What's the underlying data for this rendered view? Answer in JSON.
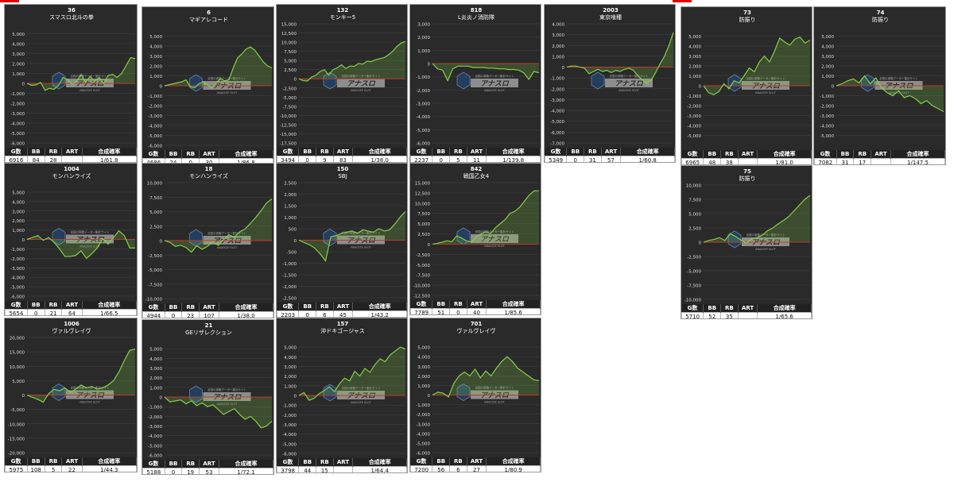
{
  "colors": {
    "panel_bg": "#2a2a2a",
    "line": "#86cf48",
    "fill": "#86cf48",
    "zero_line": "#c0392b",
    "grid": "#444444",
    "text": "#ffffff",
    "logo": "#ffffff"
  },
  "logo": {
    "name": "アナスロ",
    "sub": "ANALYZE SLOT",
    "tagline": "全国の実戦データー集計サイト"
  },
  "headers": [
    "G数",
    "BB",
    "RB",
    "ART",
    "合成確率"
  ],
  "chart_data": [
    {
      "type": "area",
      "number": "36",
      "name": "スマスロ北斗の拳",
      "ylim": [
        -6000,
        6000
      ],
      "yticks": [
        -6000,
        -5000,
        -4000,
        -3000,
        -2000,
        -1000,
        0,
        1000,
        2000,
        3000,
        4000,
        5000
      ],
      "values": [
        0,
        -200,
        -150,
        100,
        -700,
        -500,
        -600,
        -200,
        600,
        400,
        -100,
        200,
        900,
        100,
        700,
        200,
        600,
        0,
        800,
        900,
        600,
        1000,
        1800,
        2600,
        2500
      ],
      "stats": [
        "6916",
        "84",
        "28",
        "",
        "1/61.8"
      ]
    },
    {
      "type": "area",
      "number": "6",
      "name": "マギアレコード",
      "ylim": [
        -6000,
        6000
      ],
      "yticks": [
        -6000,
        -5000,
        -4000,
        -3000,
        -2000,
        -1000,
        0,
        1000,
        2000,
        3000,
        4000,
        5000
      ],
      "values": [
        0,
        100,
        200,
        300,
        400,
        600,
        -100,
        -200,
        200,
        400,
        100,
        -200,
        300,
        700,
        500,
        600,
        1800,
        2800,
        3200,
        3700,
        3900,
        3600,
        3000,
        2400,
        2000,
        1800
      ],
      "stats": [
        "4686",
        "24",
        "0",
        "30",
        "1/86.8"
      ]
    },
    {
      "type": "area",
      "number": "132",
      "name": "モンキー5",
      "ylim": [
        -17500,
        15000
      ],
      "yticks": [
        -17500,
        -15000,
        -12500,
        -10000,
        -7500,
        -5000,
        -2500,
        0,
        2500,
        5000,
        7500,
        10000,
        12500,
        15000
      ],
      "values": [
        0,
        -500,
        -600,
        500,
        1000,
        2000,
        2500,
        1000,
        2500,
        3000,
        3800,
        2800,
        3500,
        3400,
        4200,
        4000,
        4800,
        4700,
        5200,
        5500,
        5800,
        6500,
        7500,
        8800,
        9800,
        10200
      ],
      "stats": [
        "3494",
        "0",
        "9",
        "83",
        "1/38.0"
      ]
    },
    {
      "type": "area",
      "number": "818",
      "name": "L炎炎ノ消防隊",
      "ylim": [
        -6000,
        3000
      ],
      "yticks": [
        -6000,
        -5000,
        -4000,
        -3000,
        -2000,
        -1000,
        0,
        1000,
        2000,
        3000
      ],
      "values": [
        0,
        -400,
        -500,
        -1300,
        -400,
        -200,
        -200,
        -200,
        -300,
        -300,
        -300,
        -350,
        -350,
        -400,
        -400,
        -450,
        -450,
        -500,
        -700,
        -1200,
        -600,
        -700
      ],
      "stats": [
        "2237",
        "0",
        "5",
        "11",
        "1/139.8"
      ]
    },
    {
      "type": "area",
      "number": "2003",
      "name": "東京喰種",
      "ylim": [
        -7000,
        4000
      ],
      "yticks": [
        -7000,
        -6000,
        -5000,
        -4000,
        -3000,
        -2000,
        -1000,
        0,
        1000,
        2000,
        3000,
        4000
      ],
      "values": [
        0,
        100,
        100,
        0,
        -100,
        -600,
        -400,
        -200,
        -400,
        -300,
        -500,
        -300,
        -400,
        -200,
        -100,
        -300,
        -800,
        -1200,
        -1500,
        -1200,
        -500,
        300,
        1000,
        2000,
        3200
      ],
      "stats": [
        "5349",
        "0",
        "31",
        "57",
        "1/60.8"
      ]
    },
    {
      "type": "area",
      "number": "73",
      "name": "防振り",
      "ylim": [
        -6000,
        6000
      ],
      "yticks": [
        -5000,
        -4000,
        -3000,
        -2000,
        -1000,
        0,
        1000,
        2000,
        3000,
        4000,
        5000
      ],
      "values": [
        0,
        -700,
        -900,
        -600,
        200,
        -300,
        500,
        300,
        1000,
        1800,
        1400,
        2400,
        3000,
        2400,
        3500,
        4800,
        4400,
        4100,
        4700,
        4900,
        4300,
        4600
      ],
      "stats": [
        "6965",
        "48",
        "38",
        "",
        "1/81.0"
      ]
    },
    {
      "type": "area",
      "number": "74",
      "name": "防振り",
      "ylim": [
        -6000,
        6000
      ],
      "yticks": [
        -5000,
        -4000,
        -3000,
        -2000,
        -1000,
        0,
        1000,
        2000,
        3000,
        4000,
        5000
      ],
      "values": [
        0,
        200,
        500,
        700,
        300,
        1000,
        200,
        800,
        -200,
        -700,
        -1000,
        -500,
        -1200,
        -1000,
        -1300,
        -1800,
        -1500,
        -2000,
        -2300,
        -2600
      ],
      "stats": [
        "7082",
        "31",
        "17",
        "",
        "1/147.5"
      ]
    },
    {
      "type": "area",
      "number": "1004",
      "name": "モンハンライズ",
      "ylim": [
        -6000,
        6000
      ],
      "yticks": [
        -6000,
        -5000,
        -4000,
        -3000,
        -2000,
        -1000,
        0,
        1000,
        2000,
        3000,
        4000,
        5000
      ],
      "values": [
        0,
        200,
        400,
        -100,
        200,
        -300,
        -1000,
        -1800,
        -1800,
        -1700,
        -1200,
        -2000,
        -1500,
        -900,
        100,
        -500,
        200,
        900,
        400,
        -900,
        -900
      ],
      "stats": [
        "5654",
        "0",
        "21",
        "64",
        "1/66.5"
      ]
    },
    {
      "type": "area",
      "number": "18",
      "name": "モンハンライズ",
      "ylim": [
        -10000,
        10000
      ],
      "yticks": [
        -10000,
        -7500,
        -5000,
        -2500,
        0,
        2500,
        5000,
        7500,
        10000
      ],
      "values": [
        0,
        -300,
        -1000,
        -800,
        -1200,
        -2000,
        -900,
        -1500,
        -1000,
        -200,
        -800,
        200,
        1000,
        600,
        1500,
        2000,
        3000,
        4000,
        5200,
        6500,
        7200
      ],
      "stats": [
        "4944",
        "0",
        "23",
        "107",
        "1/38.0"
      ]
    },
    {
      "type": "area",
      "number": "150",
      "name": "SBJ",
      "ylim": [
        -2500,
        2500
      ],
      "yticks": [
        -2500,
        -2000,
        -1500,
        -1000,
        -500,
        0,
        500,
        1000,
        1500,
        2000,
        2500
      ],
      "values": [
        0,
        -100,
        -200,
        -350,
        -600,
        -900,
        150,
        200,
        300,
        350,
        400,
        300,
        450,
        400,
        350,
        500,
        400,
        450,
        700,
        1000,
        1250
      ],
      "stats": [
        "2203",
        "0",
        "6",
        "45",
        "1/43.2"
      ]
    },
    {
      "type": "area",
      "number": "842",
      "name": "戦国乙女4",
      "ylim": [
        -12500,
        15000
      ],
      "yticks": [
        -12500,
        -10000,
        -7500,
        -5000,
        -2500,
        0,
        2500,
        5000,
        7500,
        10000,
        12500,
        15000
      ],
      "values": [
        0,
        200,
        500,
        800,
        600,
        2000,
        1500,
        800,
        500,
        1800,
        2500,
        3000,
        2600,
        4000,
        5000,
        6000,
        7500,
        8000,
        9000,
        10500,
        12000,
        13000,
        13000
      ],
      "stats": [
        "7789",
        "51",
        "0",
        "40",
        "1/85.6"
      ]
    },
    {
      "type": "area",
      "number": "75",
      "name": "防振り",
      "ylim": [
        -10000,
        10000
      ],
      "yticks": [
        -10000,
        -7500,
        -5000,
        -2500,
        0,
        2500,
        5000,
        7500,
        10000
      ],
      "values": [
        0,
        300,
        500,
        800,
        300,
        1500,
        1000,
        400,
        -200,
        600,
        800,
        1200,
        2000,
        2500,
        3200,
        3800,
        4500,
        5500,
        6500,
        7500,
        8200
      ],
      "stats": [
        "5710",
        "52",
        "35",
        "",
        "1/65.6"
      ]
    },
    {
      "type": "area",
      "number": "1006",
      "name": "ヴァルヴレイヴ",
      "ylim": [
        -20000,
        20000
      ],
      "yticks": [
        -20000,
        -15000,
        -10000,
        -5000,
        0,
        5000,
        10000,
        15000,
        20000
      ],
      "values": [
        0,
        -800,
        -1500,
        -2500,
        500,
        2000,
        1500,
        2500,
        1000,
        2000,
        3500,
        2500,
        3000,
        2000,
        2500,
        3500,
        5000,
        8000,
        12000,
        15500,
        16000
      ],
      "stats": [
        "5975",
        "108",
        "5",
        "22",
        "1/44.3"
      ]
    },
    {
      "type": "area",
      "number": "21",
      "name": "GEリザレクション",
      "ylim": [
        -6000,
        6000
      ],
      "yticks": [
        -6000,
        -5000,
        -4000,
        -3000,
        -2000,
        -1000,
        0,
        1000,
        2000,
        3000,
        4000,
        5000
      ],
      "values": [
        0,
        -500,
        -400,
        -300,
        -700,
        -400,
        -900,
        -600,
        -1000,
        -800,
        -1300,
        -1800,
        -1500,
        -1200,
        -1800,
        -2300,
        -2000,
        -2500,
        -3200,
        -3000,
        -2500
      ],
      "stats": [
        "5188",
        "0",
        "19",
        "53",
        "1/72.1"
      ]
    },
    {
      "type": "area",
      "number": "157",
      "name": "沖ドキゴージャス",
      "ylim": [
        -6000,
        6000
      ],
      "yticks": [
        -6000,
        -5000,
        -4000,
        -3000,
        -2000,
        -1000,
        0,
        1000,
        2000,
        3000,
        4000,
        5000
      ],
      "values": [
        0,
        300,
        -500,
        -300,
        200,
        500,
        900,
        400,
        1200,
        1800,
        1500,
        2500,
        2000,
        2800,
        2400,
        3200,
        3800,
        3500,
        4200,
        4600,
        5000,
        4800
      ],
      "stats": [
        "3798",
        "44",
        "15",
        "",
        "1/64.4"
      ]
    },
    {
      "type": "area",
      "number": "701",
      "name": "ヴァルヴレイヴ",
      "ylim": [
        -6000,
        6000
      ],
      "yticks": [
        -6000,
        -5000,
        -4000,
        -3000,
        -2000,
        -1000,
        0,
        1000,
        2000,
        3000,
        4000,
        5000
      ],
      "values": [
        0,
        300,
        200,
        -200,
        1200,
        2000,
        2400,
        2000,
        2700,
        1800,
        2500,
        2000,
        2800,
        3500,
        4000,
        3500,
        2800,
        2400,
        2000,
        1600,
        1500
      ],
      "stats": [
        "7200",
        "56",
        "6",
        "27",
        "1/80.9"
      ]
    }
  ]
}
